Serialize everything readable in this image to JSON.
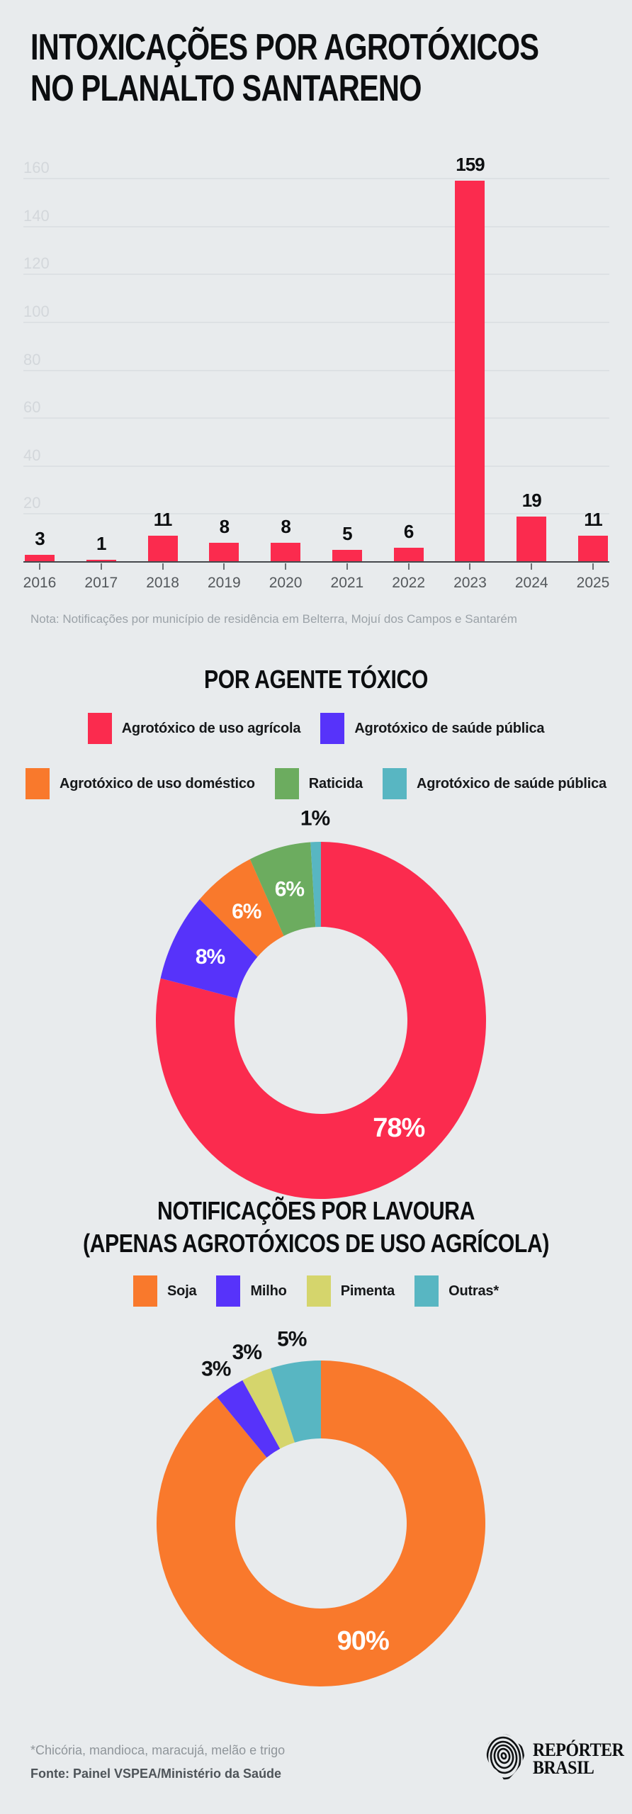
{
  "page": {
    "background": "#E8EBED"
  },
  "header": {
    "title_line1": "INTOXICAÇÕES POR AGROTÓXICOS",
    "title_line2": "NO PLANALTO SANTARENO"
  },
  "colors": {
    "background": "#E8EBED",
    "red": "#FB2B4E",
    "purple": "#5733FA",
    "orange": "#F9792C",
    "green": "#6CAC5F",
    "teal": "#58B6C2",
    "yellow": "#D5D56C"
  },
  "chart_data": [
    {
      "type": "bar",
      "categories": [
        "2016",
        "2017",
        "2018",
        "2019",
        "2020",
        "2021",
        "2022",
        "2023",
        "2024",
        "2025"
      ],
      "values": [
        3,
        1,
        11,
        8,
        8,
        5,
        6,
        159,
        19,
        11
      ],
      "bar_color": "#FB2B4E",
      "ylim": [
        0,
        160
      ],
      "yticks": [
        20,
        40,
        60,
        80,
        100,
        120,
        140,
        160
      ],
      "grid": true,
      "note": "Nota: Notificações por município de residência em Belterra, Mojuí dos Campos e Santarém"
    },
    {
      "type": "pie",
      "donut": true,
      "title": "POR AGENTE TÓXICO",
      "legend_position": "top",
      "value_suffix": "%",
      "slices": [
        {
          "label": "Agrotóxico de uso agrícola",
          "value": 78,
          "color": "#FB2B4E"
        },
        {
          "label": "Agrotóxico de saúde pública",
          "value": 8,
          "color": "#5733FA"
        },
        {
          "label": "Agrotóxico de uso doméstico",
          "value": 6,
          "color": "#F9792C"
        },
        {
          "label": "Raticida",
          "value": 6,
          "color": "#6CAC5F"
        },
        {
          "label": "Agrotóxico de saúde pública",
          "value": 1,
          "color": "#58B6C2"
        }
      ]
    },
    {
      "type": "pie",
      "donut": true,
      "title_line1": "NOTIFICAÇÕES POR LAVOURA",
      "title_line2": "(APENAS AGROTÓXICOS DE USO AGRÍCOLA)",
      "legend_position": "top",
      "value_suffix": "%",
      "slices": [
        {
          "label": "Soja",
          "value": 90,
          "color": "#F9792C"
        },
        {
          "label": "Milho",
          "value": 3,
          "color": "#5733FA"
        },
        {
          "label": "Pimenta",
          "value": 3,
          "color": "#D5D56C"
        },
        {
          "label": "Outras*",
          "value": 5,
          "color": "#58B6C2"
        }
      ]
    }
  ],
  "footer": {
    "asterisk_note": "*Chicória, mandioca, maracujá, melão e trigo",
    "source": "Fonte: Painel VSPEA/Ministério da Saúde",
    "logo_line1": "REPÓRTER",
    "logo_line2": "BRASIL"
  }
}
